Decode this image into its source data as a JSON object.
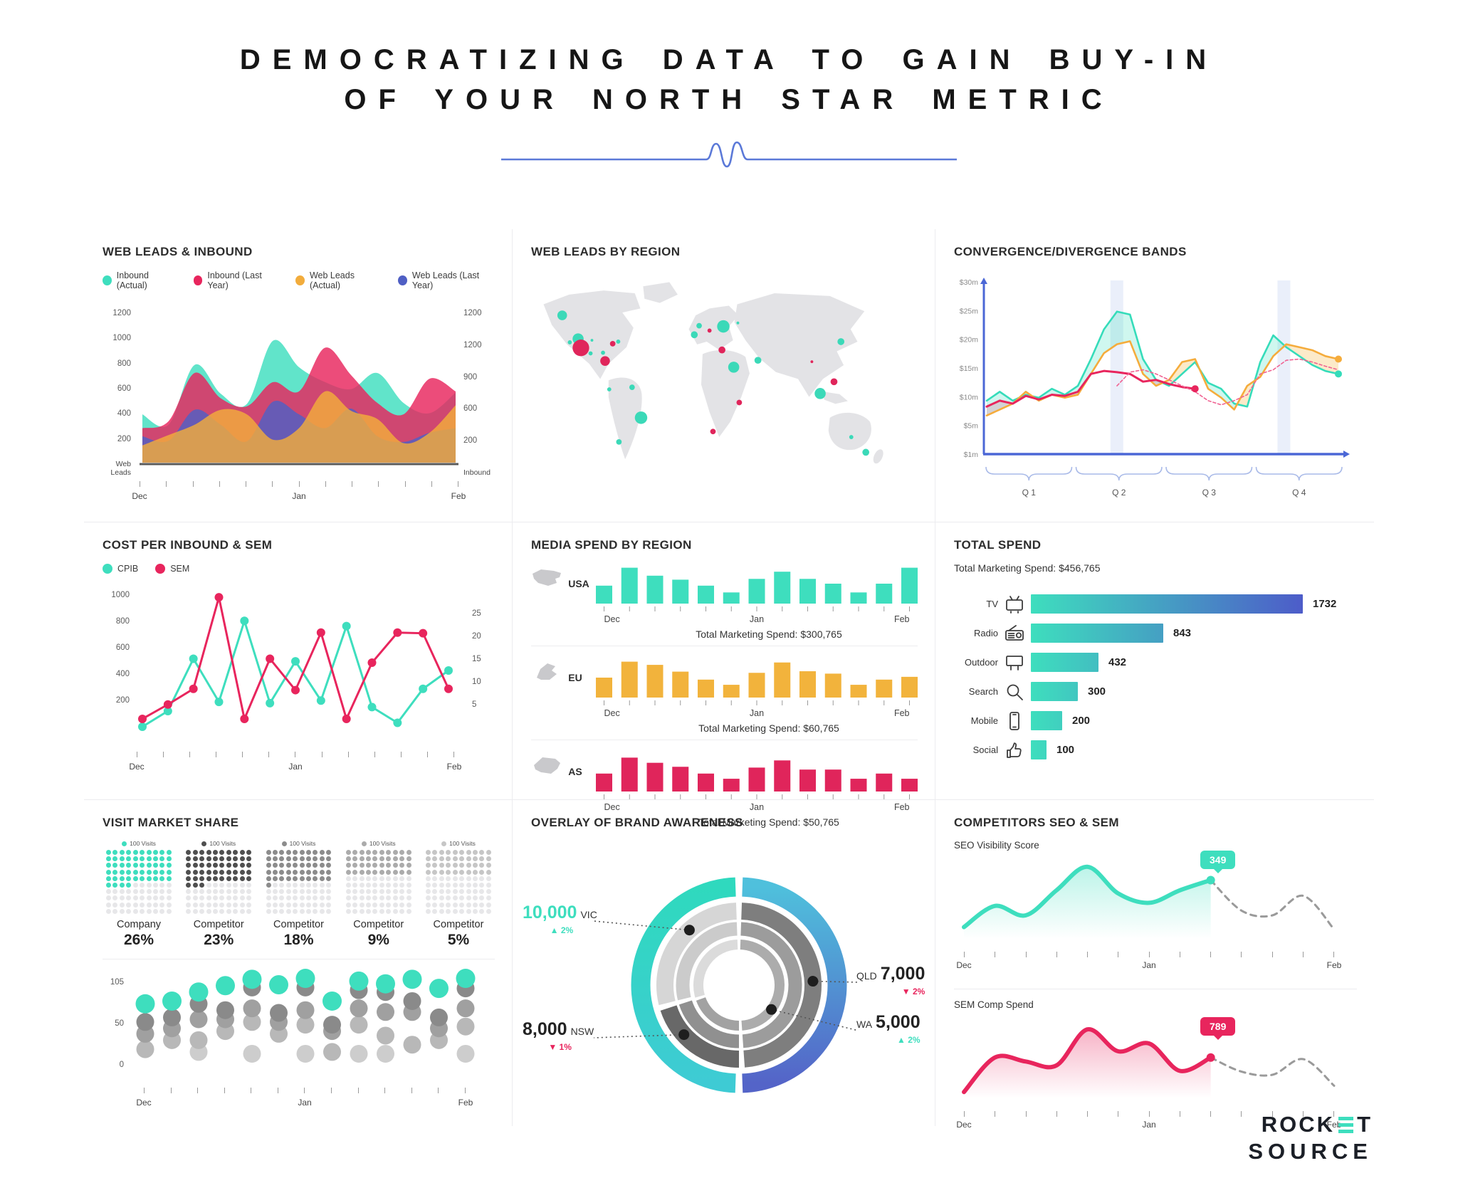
{
  "page": {
    "title_line1": "DEMOCRATIZING DATA TO GAIN BUY-IN",
    "title_line2": "OF YOUR NORTH STAR METRIC",
    "logo": {
      "top_left": "ROCK",
      "top_right": "T",
      "bottom": "SOURCE"
    },
    "accent_teal": "#3EDEBE",
    "accent_pink": "#E8255D",
    "accent_orange": "#F2AC3C",
    "accent_blue": "#4F5FC4",
    "divider_blue": "#5B79D8"
  },
  "chart_data": [
    {
      "type": "area",
      "title": "WEB LEADS & INBOUND",
      "legend": [
        {
          "label": "Inbound (Actual)",
          "color": "#3EDEBE"
        },
        {
          "label": "Inbound (Last Year)",
          "color": "#E8255D"
        },
        {
          "label": "Web Leads (Actual)",
          "color": "#F2AC3C"
        },
        {
          "label": "Web Leads (Last Year)",
          "color": "#4F5FC4"
        }
      ],
      "left_axis": [
        "1200",
        "1000",
        "800",
        "600",
        "400",
        "200"
      ],
      "left_caption": "Web Leads",
      "right_axis": [
        "1200",
        "1200",
        "900",
        "600",
        "200"
      ],
      "right_caption": "Inbound",
      "x_labels": [
        "Dec",
        "Jan",
        "Feb"
      ],
      "x_ticks": 13,
      "ylim": [
        0,
        1300
      ],
      "series": [
        {
          "name": "Inbound (Actual)",
          "color": "#3EDEBE",
          "values": [
            420,
            330,
            850,
            600,
            510,
            1060,
            830,
            700,
            640,
            780,
            520,
            430,
            610
          ]
        },
        {
          "name": "Inbound (Last Year)",
          "color": "#E8255D",
          "values": [
            300,
            360,
            780,
            560,
            490,
            700,
            620,
            1000,
            760,
            520,
            420,
            730,
            620
          ]
        },
        {
          "name": "Web Leads (Last Year)",
          "color": "#4F5FC4",
          "values": [
            230,
            190,
            460,
            330,
            185,
            530,
            420,
            300,
            470,
            230,
            180,
            260,
            300
          ]
        },
        {
          "name": "Web Leads (Actual)",
          "color": "#F2AC3C",
          "values": [
            150,
            240,
            330,
            460,
            420,
            200,
            300,
            620,
            450,
            380,
            170,
            260,
            500
          ]
        }
      ]
    },
    {
      "type": "map",
      "title": "WEB LEADS BY REGION",
      "dot_colors": {
        "t": "#3BD9B8",
        "p": "#E0255B"
      },
      "dots": [
        [
          45,
          58,
          7,
          "t"
        ],
        [
          68,
          92,
          8,
          "t"
        ],
        [
          72,
          105,
          12,
          "p"
        ],
        [
          56,
          97,
          3,
          "t"
        ],
        [
          88,
          94,
          2,
          "t"
        ],
        [
          118,
          99,
          4,
          "p"
        ],
        [
          126,
          96,
          3,
          "t"
        ],
        [
          104,
          112,
          3,
          "t"
        ],
        [
          107,
          124,
          7,
          "p"
        ],
        [
          86,
          113,
          3,
          "t"
        ],
        [
          113,
          165,
          3,
          "t"
        ],
        [
          146,
          162,
          4,
          "t"
        ],
        [
          159,
          206,
          9,
          "t"
        ],
        [
          127,
          241,
          4,
          "t"
        ],
        [
          243,
          73,
          4,
          "t"
        ],
        [
          258,
          80,
          3,
          "p"
        ],
        [
          278,
          74,
          9,
          "t"
        ],
        [
          236,
          86,
          5,
          "t"
        ],
        [
          276,
          108,
          5,
          "p"
        ],
        [
          299,
          69,
          2,
          "t"
        ],
        [
          293,
          133,
          8,
          "t"
        ],
        [
          328,
          123,
          5,
          "t"
        ],
        [
          301,
          184,
          4,
          "p"
        ],
        [
          263,
          226,
          4,
          "p"
        ],
        [
          406,
          125,
          2,
          "p"
        ],
        [
          448,
          96,
          5,
          "t"
        ],
        [
          438,
          154,
          5,
          "p"
        ],
        [
          418,
          171,
          8,
          "t"
        ],
        [
          463,
          234,
          3,
          "t"
        ],
        [
          484,
          256,
          5,
          "t"
        ]
      ]
    },
    {
      "type": "bands",
      "title": "CONVERGENCE/DIVERGENCE BANDS",
      "y_labels": [
        "$30m",
        "$25m",
        "$20m",
        "$15m",
        "$10m",
        "$5m",
        "$1m"
      ],
      "q_labels": [
        "Q 1",
        "Q 2",
        "Q 3",
        "Q 4"
      ],
      "ylim": [
        1,
        30
      ],
      "highlights": [
        0.37,
        0.845
      ],
      "teal_line": [
        10,
        11.5,
        10,
        11,
        10.5,
        12,
        11,
        12.5,
        17,
        22,
        25,
        24.5,
        17,
        13.5,
        12.5,
        14.5,
        16.5,
        13,
        12,
        9.5,
        9,
        16.5,
        21,
        19,
        17.5,
        16,
        15,
        14.5
      ],
      "orange_line": [
        7.5,
        8.5,
        9.5,
        11.5,
        10,
        11,
        10.5,
        11,
        14.5,
        18,
        19.5,
        20,
        14.5,
        12.5,
        13.5,
        16.5,
        17,
        12,
        10.5,
        8.5,
        12.5,
        14,
        17.5,
        19.5,
        19,
        18.5,
        17.5,
        17
      ],
      "red_line": [
        9,
        10,
        9.5,
        10.8,
        10.2,
        11,
        10.8,
        11.5,
        14.5,
        15,
        14.8,
        14.5,
        13.2,
        13.5,
        12.8,
        12.3,
        12
      ],
      "pink_dashed_start": 10,
      "pink_dashed": [
        12.5,
        14.8,
        15.2,
        14.5,
        13.5,
        12.5,
        11.5,
        10,
        9.3,
        10,
        11,
        14.5,
        15.2,
        16.8,
        17,
        16.5,
        15.8,
        15.2
      ]
    },
    {
      "type": "line",
      "title": "COST PER INBOUND & SEM",
      "legend": [
        {
          "label": "CPIB",
          "color": "#3EDEBE"
        },
        {
          "label": "SEM",
          "color": "#E8255D"
        }
      ],
      "left_axis": [
        "1000",
        "800",
        "600",
        "400",
        "200"
      ],
      "right_axis": [
        "25",
        "20",
        "15",
        "10",
        "5"
      ],
      "x_labels": [
        "Dec",
        "Jan",
        "Feb"
      ],
      "x_ticks": 13,
      "ylim": [
        0,
        1100
      ],
      "series": [
        {
          "name": "CPIB",
          "color": "#3EDEBE",
          "values": [
            60,
            180,
            580,
            250,
            870,
            240,
            560,
            260,
            830,
            210,
            90,
            350,
            490
          ]
        },
        {
          "name": "SEM",
          "color": "#E8255D",
          "values": [
            120,
            230,
            350,
            1050,
            120,
            580,
            340,
            780,
            120,
            550,
            780,
            775,
            350
          ]
        }
      ]
    },
    {
      "type": "bar-rows",
      "title": "MEDIA SPEND BY REGION",
      "x_labels": [
        "Dec",
        "Jan",
        "Feb"
      ],
      "rows": [
        {
          "region": "USA",
          "color": "#3EDEBE",
          "total": "Total Marketing Spend: $300,765",
          "values": [
            45,
            90,
            70,
            60,
            45,
            28,
            62,
            80,
            62,
            50,
            28,
            50,
            90
          ]
        },
        {
          "region": "EU",
          "color": "#F2B33C",
          "total": "Total Marketing Spend: $60,765",
          "values": [
            50,
            90,
            82,
            65,
            45,
            32,
            62,
            88,
            66,
            60,
            32,
            45,
            52
          ]
        },
        {
          "region": "AS",
          "color": "#E0255B",
          "total": "Total Marketing Spend: $50,765",
          "values": [
            45,
            85,
            72,
            62,
            45,
            32,
            60,
            78,
            55,
            55,
            32,
            45,
            32
          ]
        }
      ]
    },
    {
      "type": "hbar",
      "title": "TOTAL SPEND",
      "subtitle": "Total Marketing Spend: $456,765",
      "max": 1732,
      "bars": [
        {
          "label": "TV",
          "icon": "tv-icon",
          "value": 1732
        },
        {
          "label": "Radio",
          "icon": "radio-icon",
          "value": 843
        },
        {
          "label": "Outdoor",
          "icon": "billboard-icon",
          "value": 432
        },
        {
          "label": "Search",
          "icon": "search-icon",
          "value": 300
        },
        {
          "label": "Mobile",
          "icon": "mobile-icon",
          "value": 200
        },
        {
          "label": "Social",
          "icon": "thumbsup-icon",
          "value": 100
        }
      ]
    },
    {
      "type": "dot-matrix",
      "title": "VISIT MARKET SHARE",
      "grid_legend": "100 Visits",
      "empty_color": "#E7E7E9",
      "grids": [
        {
          "label": "Company",
          "pct": "26%",
          "filled": 54,
          "color": "#3EDEBE"
        },
        {
          "label": "Competitor",
          "pct": "23%",
          "filled": 53,
          "color": "#4F4F4F"
        },
        {
          "label": "Competitor",
          "pct": "18%",
          "filled": 51,
          "color": "#8C8C8C"
        },
        {
          "label": "Competitor",
          "pct": "9%",
          "filled": 40,
          "color": "#ABABAB"
        },
        {
          "label": "Competitor",
          "pct": "5%",
          "filled": 40,
          "color": "#C6C6C6"
        }
      ],
      "bubble": {
        "y_labels": [
          "105",
          "50",
          "0"
        ],
        "x_labels": [
          "Dec",
          "Jan",
          "Feb"
        ],
        "ylim": [
          0,
          105
        ],
        "columns": [
          {
            "t": 75,
            "g": [
              55,
              42,
              25
            ]
          },
          {
            "t": 78,
            "g": [
              60,
              48,
              35
            ]
          },
          {
            "t": 88,
            "g": [
              75,
              58,
              35,
              22
            ]
          },
          {
            "t": 95,
            "g": [
              68,
              58,
              45
            ]
          },
          {
            "t": 102,
            "g": [
              93,
              70,
              55,
              20
            ]
          },
          {
            "t": 96,
            "g": [
              65,
              55,
              42
            ]
          },
          {
            "t": 103,
            "g": [
              93,
              68,
              52,
              20
            ]
          },
          {
            "t": 78,
            "g": [
              52,
              45,
              22
            ]
          },
          {
            "t": 100,
            "g": [
              90,
              70,
              52,
              20
            ]
          },
          {
            "t": 97,
            "g": [
              88,
              66,
              40,
              20
            ]
          },
          {
            "t": 102,
            "g": [
              78,
              66,
              30
            ]
          },
          {
            "t": 92,
            "g": [
              60,
              48,
              35
            ]
          },
          {
            "t": 103,
            "g": [
              92,
              70,
              50,
              20
            ]
          }
        ]
      }
    },
    {
      "type": "donut",
      "title": "OVERLAY OF BRAND AWARENESS",
      "callouts": [
        {
          "region": "VIC",
          "value": "10,000",
          "delta": "2%",
          "dir": "up",
          "value_style": "teal",
          "order": "value-first"
        },
        {
          "region": "QLD",
          "value": "7,000",
          "delta": "2%",
          "dir": "down",
          "value_style": "dark",
          "order": "region-first"
        },
        {
          "region": "NSW",
          "value": "8,000",
          "delta": "1%",
          "dir": "down",
          "value_style": "dark",
          "order": "value-first"
        },
        {
          "region": "WA",
          "value": "5,000",
          "delta": "2%",
          "dir": "up",
          "value_style": "dark",
          "order": "region-first"
        }
      ]
    },
    {
      "type": "smooth",
      "title": "COMPETITORS SEO & SEM",
      "x_labels": [
        "Dec",
        "Jan",
        "Feb"
      ],
      "sub1": {
        "label": "SEO Visibility Score",
        "badge": "349",
        "color": "#3EDEBE",
        "solid": [
          15,
          42,
          30,
          62,
          92,
          58,
          46,
          62,
          75
        ],
        "dashed": [
          75,
          36,
          30,
          55,
          12
        ]
      },
      "sub2": {
        "label": "SEM Comp Spend",
        "badge": "789",
        "color": "#E8255D",
        "solid": [
          8,
          52,
          47,
          42,
          88,
          60,
          70,
          35,
          52
        ],
        "dashed": [
          52,
          34,
          30,
          50,
          16
        ]
      }
    }
  ]
}
